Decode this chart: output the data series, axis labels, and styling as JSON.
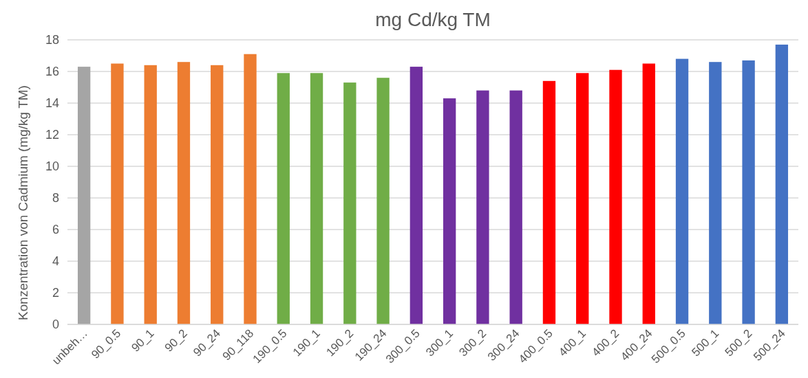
{
  "chart_data": {
    "type": "bar",
    "title": "mg Cd/kg TM",
    "ylabel": "Konzentration von Cadmium (mg/kg TM)",
    "categories": [
      "unbeh…",
      "90_0.5",
      "90_1",
      "90_2",
      "90_24",
      "90_118",
      "190_0.5",
      "190_1",
      "190_2",
      "190_24",
      "300_0.5",
      "300_1",
      "300_2",
      "300_24",
      "400_0.5",
      "400_1",
      "400_2",
      "400_24",
      "500_0.5",
      "500_1",
      "500_2",
      "500_24"
    ],
    "values": [
      16.3,
      16.5,
      16.4,
      16.6,
      16.4,
      17.1,
      15.9,
      15.9,
      15.3,
      15.6,
      16.3,
      14.3,
      14.8,
      14.8,
      15.4,
      15.9,
      16.1,
      16.5,
      16.8,
      16.6,
      16.7,
      17.7
    ],
    "colors": [
      "#a5a5a5",
      "#ed7d31",
      "#ed7d31",
      "#ed7d31",
      "#ed7d31",
      "#ed7d31",
      "#70ad47",
      "#70ad47",
      "#70ad47",
      "#70ad47",
      "#7030a0",
      "#7030a0",
      "#7030a0",
      "#7030a0",
      "#ff0000",
      "#ff0000",
      "#ff0000",
      "#ff0000",
      "#4472c4",
      "#4472c4",
      "#4472c4",
      "#4472c4"
    ],
    "ylim": [
      0,
      18
    ],
    "yticks": [
      0,
      2,
      4,
      6,
      8,
      10,
      12,
      14,
      16,
      18
    ],
    "grid": "y"
  }
}
